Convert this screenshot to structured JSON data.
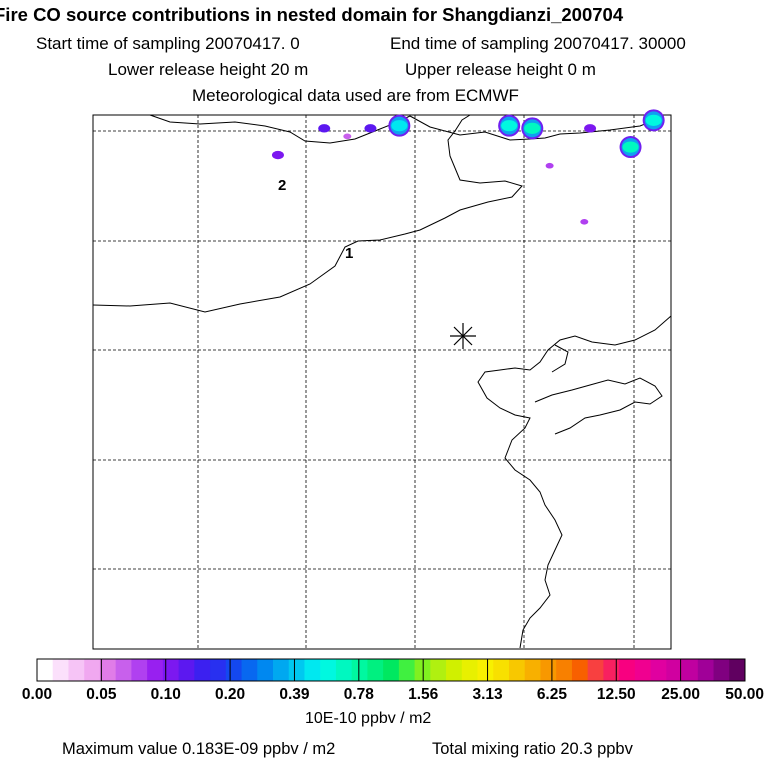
{
  "header": {
    "title": "Fire CO source contributions in nested domain for Shangdianzi_200704",
    "start_sampling": "Start time of sampling 20070417.     0",
    "end_sampling": "End time of sampling 20070417. 30000",
    "lower_release": "Lower release height   20 m",
    "upper_release": "Upper release height    0 m",
    "met_data": "Meteorological data used are from ECMWF"
  },
  "chart_data": {
    "type": "heatmap",
    "title": "Fire CO source contributions in nested domain for Shangdianzi_200704",
    "colorbar": {
      "unit": "10E-10 ppbv / m2",
      "tick_labels": [
        "0.00",
        "0.05",
        "0.10",
        "0.20",
        "0.39",
        "0.78",
        "1.56",
        "3.13",
        "6.25",
        "12.50",
        "25.00",
        "50.00"
      ],
      "colors": [
        "#ffffff",
        "#fbe0fb",
        "#f6c4f6",
        "#f0a8f0",
        "#e07ce8",
        "#c860ec",
        "#b040f0",
        "#9820f0",
        "#7c18f0",
        "#5c18f0",
        "#3c20f0",
        "#2830f0",
        "#1448f0",
        "#0868f0",
        "#0088f0",
        "#00a8f0",
        "#00c8f0",
        "#00e8f0",
        "#00f8e0",
        "#00f8c0",
        "#00f8a0",
        "#00f080",
        "#00e860",
        "#40f040",
        "#80f020",
        "#b0f010",
        "#d0f000",
        "#e8f000",
        "#f8f000",
        "#f8e000",
        "#f8c800",
        "#f8b000",
        "#f89800",
        "#f88000",
        "#f86000",
        "#f84040",
        "#f82060",
        "#f80080",
        "#f00090",
        "#e000a0",
        "#d000a0",
        "#c000a0",
        "#a00098",
        "#800080",
        "#600060"
      ]
    },
    "cells": [
      {
        "lon_frac": 0.4,
        "lat_frac": 0.975,
        "value": 0.12
      },
      {
        "lon_frac": 0.44,
        "lat_frac": 0.96,
        "value": 0.06
      },
      {
        "lon_frac": 0.32,
        "lat_frac": 0.925,
        "value": 0.1
      },
      {
        "lon_frac": 0.48,
        "lat_frac": 0.975,
        "value": 0.12
      },
      {
        "lon_frac": 0.53,
        "lat_frac": 0.98,
        "value": 0.5
      },
      {
        "lon_frac": 0.72,
        "lat_frac": 0.98,
        "value": 0.6
      },
      {
        "lon_frac": 0.76,
        "lat_frac": 0.975,
        "value": 0.7
      },
      {
        "lon_frac": 0.79,
        "lat_frac": 0.905,
        "value": 0.08
      },
      {
        "lon_frac": 0.86,
        "lat_frac": 0.975,
        "value": 0.1
      },
      {
        "lon_frac": 0.85,
        "lat_frac": 0.8,
        "value": 0.08
      },
      {
        "lon_frac": 0.93,
        "lat_frac": 0.94,
        "value": 0.7
      },
      {
        "lon_frac": 0.97,
        "lat_frac": 0.99,
        "value": 0.6
      }
    ],
    "contour_labels": [
      "1",
      "2"
    ],
    "receptor_marker": "asterisk",
    "max_value_text": "Maximum value  0.183E-09 ppbv / m2",
    "total_mixing_text": "Total mixing ratio       20.3 ppbv"
  }
}
